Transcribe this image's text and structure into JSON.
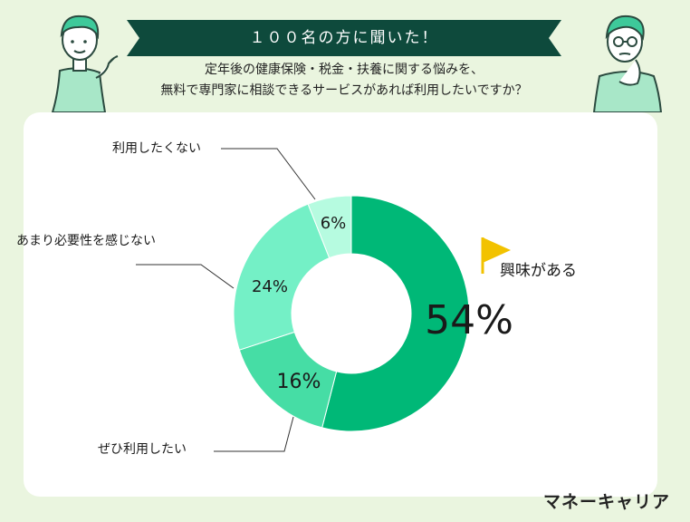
{
  "header": {
    "banner": "１００名の方に聞いた！",
    "question_line1": "定年後の健康保険・税金・扶養に関する悩みを、",
    "question_line2": "無料で専門家に相談できるサービスがあれば利用したいですか？"
  },
  "brand": "マネーキャリア",
  "colors": {
    "background": "#eaf5df",
    "banner": "#0e4a3c",
    "flag": "#f2c200"
  },
  "chart_data": {
    "type": "pie",
    "donut": true,
    "title": "",
    "slices": [
      {
        "label": "興味がある",
        "value": 54,
        "value_label": "54%",
        "color": "#00b877"
      },
      {
        "label": "ぜひ利用したい",
        "value": 16,
        "value_label": "16%",
        "color": "#46dda5"
      },
      {
        "label": "あまり必要性を感じない",
        "value": 24,
        "value_label": "24%",
        "color": "#74f0c6"
      },
      {
        "label": "利用したくない",
        "value": 6,
        "value_label": "6%",
        "color": "#b6fbe0"
      }
    ]
  }
}
